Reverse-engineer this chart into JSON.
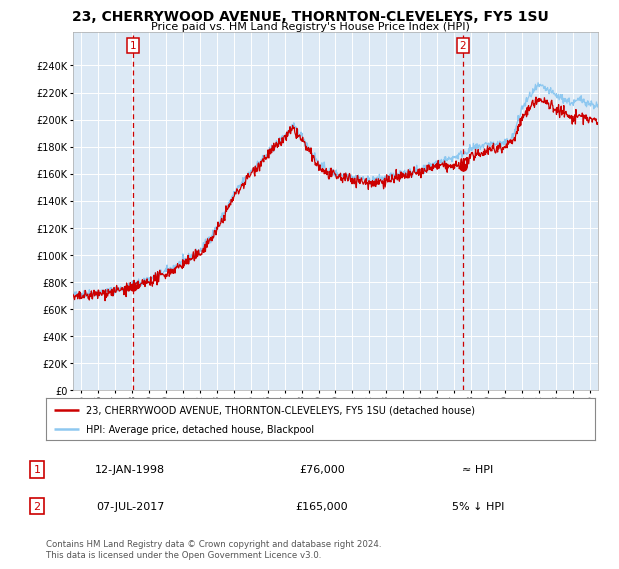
{
  "title": "23, CHERRYWOOD AVENUE, THORNTON-CLEVELEYS, FY5 1SU",
  "subtitle": "Price paid vs. HM Land Registry's House Price Index (HPI)",
  "legend_line1": "23, CHERRYWOOD AVENUE, THORNTON-CLEVELEYS, FY5 1SU (detached house)",
  "legend_line2": "HPI: Average price, detached house, Blackpool",
  "annotation1_label": "1",
  "annotation1_date": "12-JAN-1998",
  "annotation1_price": "£76,000",
  "annotation1_hpi": "≈ HPI",
  "annotation2_label": "2",
  "annotation2_date": "07-JUL-2017",
  "annotation2_price": "£165,000",
  "annotation2_hpi": "5% ↓ HPI",
  "footer": "Contains HM Land Registry data © Crown copyright and database right 2024.\nThis data is licensed under the Open Government Licence v3.0.",
  "sale1_x": 1998.04,
  "sale1_y": 76000,
  "sale2_x": 2017.52,
  "sale2_y": 165000,
  "hpi_color": "#8ec8f0",
  "price_color": "#cc0000",
  "bg_color": "#dce9f5",
  "plot_bg": "#dce9f5",
  "vline_color": "#cc0000",
  "grid_color": "#ffffff",
  "ylim": [
    0,
    265000
  ],
  "xlim_start": 1994.5,
  "xlim_end": 2025.5,
  "ytick_max": 240000,
  "ytick_step": 20000
}
